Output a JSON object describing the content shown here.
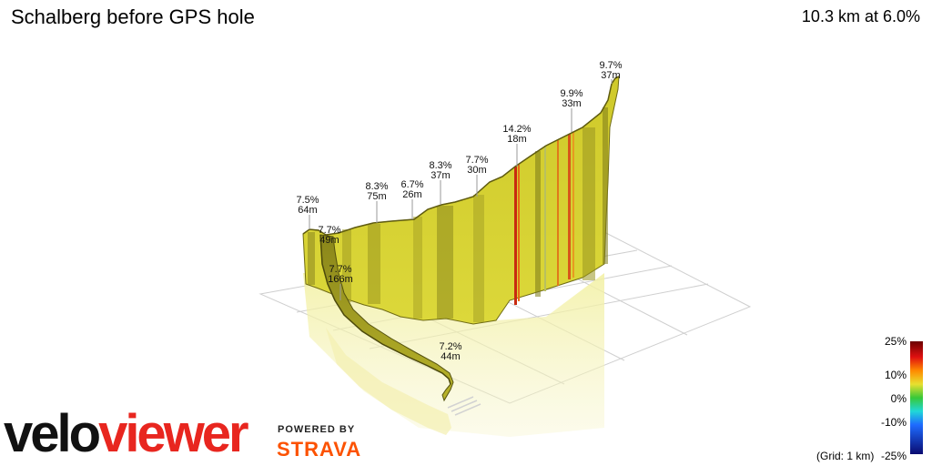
{
  "header": {
    "title": "Schalberg before GPS hole",
    "summary": "10.3 km at 6.0%"
  },
  "colors": {
    "base_segment": "#d6d12c",
    "steep_segment": "#d23a12",
    "grid": "#c8c8c8"
  },
  "chart_data": {
    "type": "area",
    "style": "3d-elevation-profile",
    "title": "Schalberg before GPS hole",
    "summary": "10.3 km at 6.0%",
    "segment_labels": [
      {
        "gradient": "7.5%",
        "length": "64m"
      },
      {
        "gradient": "7.7%",
        "length": "49m"
      },
      {
        "gradient": "7.7%",
        "length": "166m"
      },
      {
        "gradient": "7.2%",
        "length": "44m"
      },
      {
        "gradient": "8.3%",
        "length": "75m"
      },
      {
        "gradient": "6.7%",
        "length": "26m"
      },
      {
        "gradient": "8.3%",
        "length": "37m"
      },
      {
        "gradient": "7.7%",
        "length": "30m"
      },
      {
        "gradient": "14.2%",
        "length": "18m"
      },
      {
        "gradient": "9.9%",
        "length": "33m"
      },
      {
        "gradient": "9.7%",
        "length": "37m"
      }
    ],
    "gradient_scale": {
      "ticks": [
        "25%",
        "10%",
        "0%",
        "-10%",
        "-25%"
      ],
      "stops": [
        {
          "value": 25,
          "color": "#6b0000"
        },
        {
          "value": 18,
          "color": "#e01010"
        },
        {
          "value": 12,
          "color": "#ff8a00"
        },
        {
          "value": 6,
          "color": "#e8e030"
        },
        {
          "value": 0,
          "color": "#38c838"
        },
        {
          "value": -6,
          "color": "#20d8d8"
        },
        {
          "value": -12,
          "color": "#1e6bff"
        },
        {
          "value": -25,
          "color": "#0a0a70"
        }
      ]
    },
    "grid_note": "(Grid: 1 km)"
  },
  "branding": {
    "logo_part1": "velo",
    "logo_part2": "viewer",
    "powered_by": "POWERED BY",
    "strava": "STRAVA"
  }
}
